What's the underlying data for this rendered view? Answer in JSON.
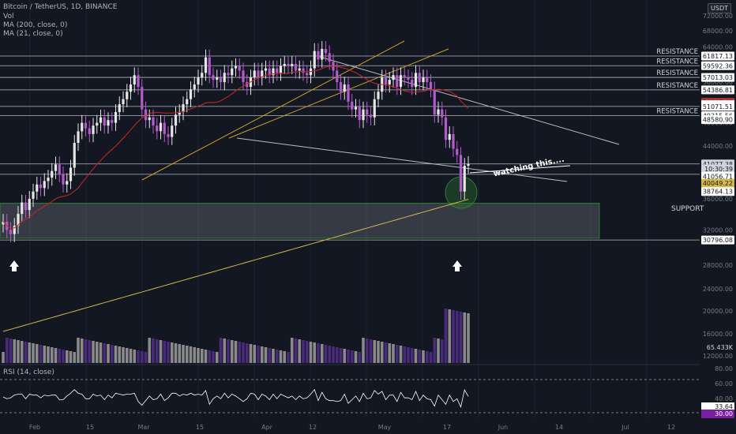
{
  "header": {
    "symbol": "Bitcoin / TetherUS, 1D, BINANCE",
    "vol": "Vol",
    "ma200": "MA (200, close, 0)",
    "ma21": "MA (21, close, 0)",
    "currency": "USDT"
  },
  "annotations": {
    "watching": "watching this....",
    "support": "SUPPORT"
  },
  "rsi_panel": {
    "label": "RSI (14, close)"
  },
  "colors": {
    "background": "#131722",
    "up": "#e6e6e6",
    "down": "#b45bcc",
    "resistance_line": "#d1d4dc",
    "support_zone": "#2e7d32",
    "ma200": "#d4b84a",
    "ma21": "#e0e0e0",
    "trendline": "#9e9e9e",
    "channel": "#c9a227",
    "rsi_line": "#ffffff"
  },
  "chart_data": {
    "type": "candlestick",
    "price_axis_ticks": [
      "72000.00",
      "68000.00",
      "64000.00",
      "56000.00",
      "52000.00",
      "48000.00",
      "44000.00",
      "36000.00",
      "32000.00",
      "28000.00",
      "24000.00",
      "20000.00",
      "16000.00",
      "12000.00"
    ],
    "level_labels": [
      {
        "text": "RESISTANCE",
        "price": 61817.13
      },
      {
        "text": "RESISTANCE",
        "price": 59592.36
      },
      {
        "text": "RESISTANCE",
        "price": 57013.03
      },
      {
        "text": "RESISTANCE",
        "price": 54386.81
      },
      {
        "text": "RESISTANCE",
        "price": 49315.56
      }
    ],
    "price_labels": [
      {
        "text": "61817.13",
        "price": 61817.13
      },
      {
        "text": "59592.36",
        "price": 59592.36
      },
      {
        "text": "57013.03",
        "price": 57013.03
      },
      {
        "text": "54386.81",
        "price": 54386.81
      },
      {
        "text": "51867.63",
        "price": 51867.63,
        "color": "#c0392b"
      },
      {
        "text": "51440.73",
        "price": 51440.73
      },
      {
        "text": "51071.51",
        "price": 51071.51
      },
      {
        "text": "49315.56",
        "price": 49315.56
      },
      {
        "text": "48580.90",
        "price": 48580.9
      },
      {
        "text": "41077.38",
        "price": 41077.38,
        "color": "#d1d4dc"
      },
      {
        "text": "10:30:39",
        "price": 40300,
        "color": "#d1d4dc"
      },
      {
        "text": "41056.71",
        "price": 39200
      },
      {
        "text": "40049.22",
        "price": 38200,
        "color": "#d4b84a"
      },
      {
        "text": "38764.13",
        "price": 37000
      },
      {
        "text": "30796.08",
        "price": 30796.08
      }
    ],
    "horizontal_levels": [
      61817.13,
      59592.36,
      57013.03,
      54386.81,
      51071.51,
      49315.56,
      41077.38,
      39500,
      30796.08
    ],
    "support_zone": [
      31000,
      35400
    ],
    "volume_axis_ticks": [
      "28000.00",
      "24000.00",
      "20000.00",
      "16000.00",
      "12000.00"
    ],
    "volume_last": "65.433K",
    "rsi_ticks": [
      "80.00",
      "60.00",
      "40.00",
      "20.00"
    ],
    "rsi_last": "33.64",
    "rsi_level": "30.00",
    "x_labels": [
      "Feb",
      "15",
      "Mar",
      "15",
      "Apr",
      "12",
      "May",
      "17",
      "Jun",
      "14",
      "Jul",
      "12"
    ],
    "closes": [
      33000,
      32000,
      31500,
      32500,
      34000,
      35500,
      34500,
      36000,
      37000,
      38000,
      37500,
      38500,
      39000,
      40000,
      41000,
      39500,
      38000,
      38500,
      40500,
      44500,
      46500,
      48000,
      47000,
      46000,
      47500,
      48000,
      49000,
      47500,
      48500,
      48000,
      50000,
      51500,
      52500,
      54000,
      55500,
      57500,
      55000,
      50500,
      48500,
      49000,
      47500,
      46500,
      48000,
      46000,
      45500,
      47500,
      49500,
      50000,
      51500,
      52500,
      54500,
      55500,
      57000,
      58000,
      61500,
      57500,
      56500,
      57000,
      56000,
      58000,
      57500,
      59000,
      59500,
      58500,
      56000,
      55000,
      57000,
      58500,
      57000,
      58500,
      59000,
      57500,
      59000,
      58000,
      59500,
      60000,
      59500,
      60000,
      58500,
      59000,
      58000,
      57500,
      59000,
      63000,
      61000,
      63500,
      62500,
      60500,
      58500,
      56000,
      54000,
      55500,
      52000,
      50500,
      51000,
      48500,
      50500,
      49500,
      49000,
      52500,
      54000,
      57000,
      55500,
      56500,
      57500,
      55000,
      57500,
      57000,
      56500,
      55000,
      58000,
      56000,
      57000,
      56000,
      54500,
      49500,
      50500,
      49000,
      45000,
      46000,
      43500,
      42500,
      37000,
      40800,
      41077
    ]
  }
}
